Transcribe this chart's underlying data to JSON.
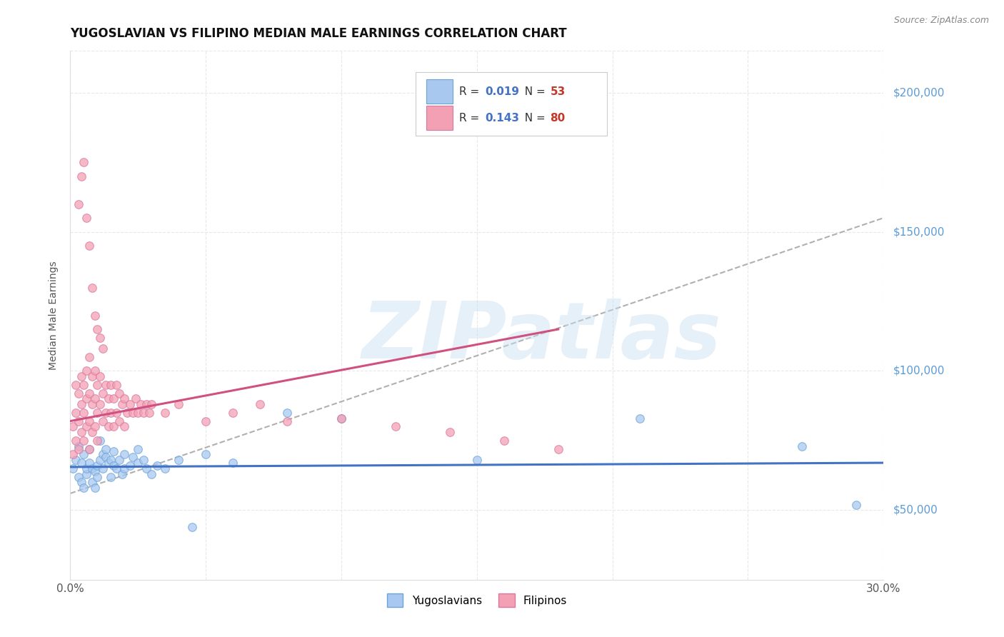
{
  "title": "YUGOSLAVIAN VS FILIPINO MEDIAN MALE EARNINGS CORRELATION CHART",
  "source": "Source: ZipAtlas.com",
  "ylabel": "Median Male Earnings",
  "xlim": [
    0.0,
    0.3
  ],
  "ylim": [
    25000,
    215000
  ],
  "xticks": [
    0.0,
    0.05,
    0.1,
    0.15,
    0.2,
    0.25,
    0.3
  ],
  "ytick_labels_right": [
    "$50,000",
    "$100,000",
    "$150,000",
    "$200,000"
  ],
  "ytick_values_right": [
    50000,
    100000,
    150000,
    200000
  ],
  "yug_color": "#a8c8f0",
  "yug_edge": "#6ba4d8",
  "fil_color": "#f4a0b4",
  "fil_edge": "#d878a0",
  "trend_blue_color": "#4472c4",
  "trend_pink_color": "#d05080",
  "trend_gray_color": "#b0b0b0",
  "right_label_color": "#5b9bd5",
  "legend_R_color": "#4472c4",
  "legend_N_color": "#c0392b",
  "grid_color": "#e8e8e8",
  "bg_color": "#ffffff",
  "scatter_size": 70,
  "scatter_alpha": 0.75,
  "watermark": "ZIPatlas",
  "title_fontsize": 12,
  "legend_R1": "0.019",
  "legend_N1": "53",
  "legend_R2": "0.143",
  "legend_N2": "80",
  "yugoslavian_x": [
    0.001,
    0.002,
    0.003,
    0.003,
    0.004,
    0.004,
    0.005,
    0.005,
    0.006,
    0.006,
    0.007,
    0.007,
    0.008,
    0.008,
    0.009,
    0.009,
    0.01,
    0.01,
    0.011,
    0.011,
    0.012,
    0.012,
    0.013,
    0.013,
    0.014,
    0.015,
    0.015,
    0.016,
    0.016,
    0.017,
    0.018,
    0.019,
    0.02,
    0.02,
    0.022,
    0.023,
    0.025,
    0.025,
    0.027,
    0.028,
    0.03,
    0.032,
    0.035,
    0.04,
    0.045,
    0.05,
    0.06,
    0.08,
    0.1,
    0.15,
    0.21,
    0.27,
    0.29
  ],
  "yugoslavian_y": [
    65000,
    68000,
    62000,
    73000,
    60000,
    67000,
    58000,
    70000,
    63000,
    65000,
    67000,
    72000,
    60000,
    65000,
    58000,
    64000,
    66000,
    62000,
    75000,
    68000,
    70000,
    65000,
    72000,
    69000,
    67000,
    68000,
    62000,
    66000,
    71000,
    65000,
    68000,
    63000,
    65000,
    70000,
    66000,
    69000,
    67000,
    72000,
    68000,
    65000,
    63000,
    66000,
    65000,
    68000,
    44000,
    70000,
    67000,
    85000,
    83000,
    68000,
    83000,
    73000,
    52000
  ],
  "filipino_x": [
    0.001,
    0.001,
    0.002,
    0.002,
    0.002,
    0.003,
    0.003,
    0.003,
    0.004,
    0.004,
    0.004,
    0.005,
    0.005,
    0.005,
    0.006,
    0.006,
    0.006,
    0.007,
    0.007,
    0.007,
    0.007,
    0.008,
    0.008,
    0.008,
    0.009,
    0.009,
    0.009,
    0.01,
    0.01,
    0.01,
    0.011,
    0.011,
    0.012,
    0.012,
    0.013,
    0.013,
    0.014,
    0.014,
    0.015,
    0.015,
    0.016,
    0.016,
    0.017,
    0.017,
    0.018,
    0.018,
    0.019,
    0.02,
    0.02,
    0.021,
    0.022,
    0.023,
    0.024,
    0.025,
    0.026,
    0.027,
    0.028,
    0.029,
    0.03,
    0.035,
    0.04,
    0.05,
    0.06,
    0.07,
    0.08,
    0.1,
    0.12,
    0.14,
    0.16,
    0.18,
    0.003,
    0.004,
    0.005,
    0.006,
    0.007,
    0.008,
    0.009,
    0.01,
    0.011,
    0.012
  ],
  "filipino_y": [
    70000,
    80000,
    75000,
    85000,
    95000,
    72000,
    82000,
    92000,
    78000,
    88000,
    98000,
    75000,
    85000,
    95000,
    80000,
    90000,
    100000,
    72000,
    82000,
    92000,
    105000,
    78000,
    88000,
    98000,
    80000,
    90000,
    100000,
    75000,
    85000,
    95000,
    88000,
    98000,
    82000,
    92000,
    85000,
    95000,
    80000,
    90000,
    85000,
    95000,
    80000,
    90000,
    85000,
    95000,
    82000,
    92000,
    88000,
    80000,
    90000,
    85000,
    88000,
    85000,
    90000,
    85000,
    88000,
    85000,
    88000,
    85000,
    88000,
    85000,
    88000,
    82000,
    85000,
    88000,
    82000,
    83000,
    80000,
    78000,
    75000,
    72000,
    160000,
    170000,
    175000,
    155000,
    145000,
    130000,
    120000,
    115000,
    112000,
    108000
  ],
  "trend_blue_x0": 0.0,
  "trend_blue_x1": 0.3,
  "trend_blue_y0": 65500,
  "trend_blue_y1": 67000,
  "trend_pink_x0": 0.0,
  "trend_pink_x1": 0.18,
  "trend_pink_y0": 82000,
  "trend_pink_y1": 115000,
  "trend_gray_x0": 0.0,
  "trend_gray_x1": 0.3,
  "trend_gray_y0": 56000,
  "trend_gray_y1": 155000
}
